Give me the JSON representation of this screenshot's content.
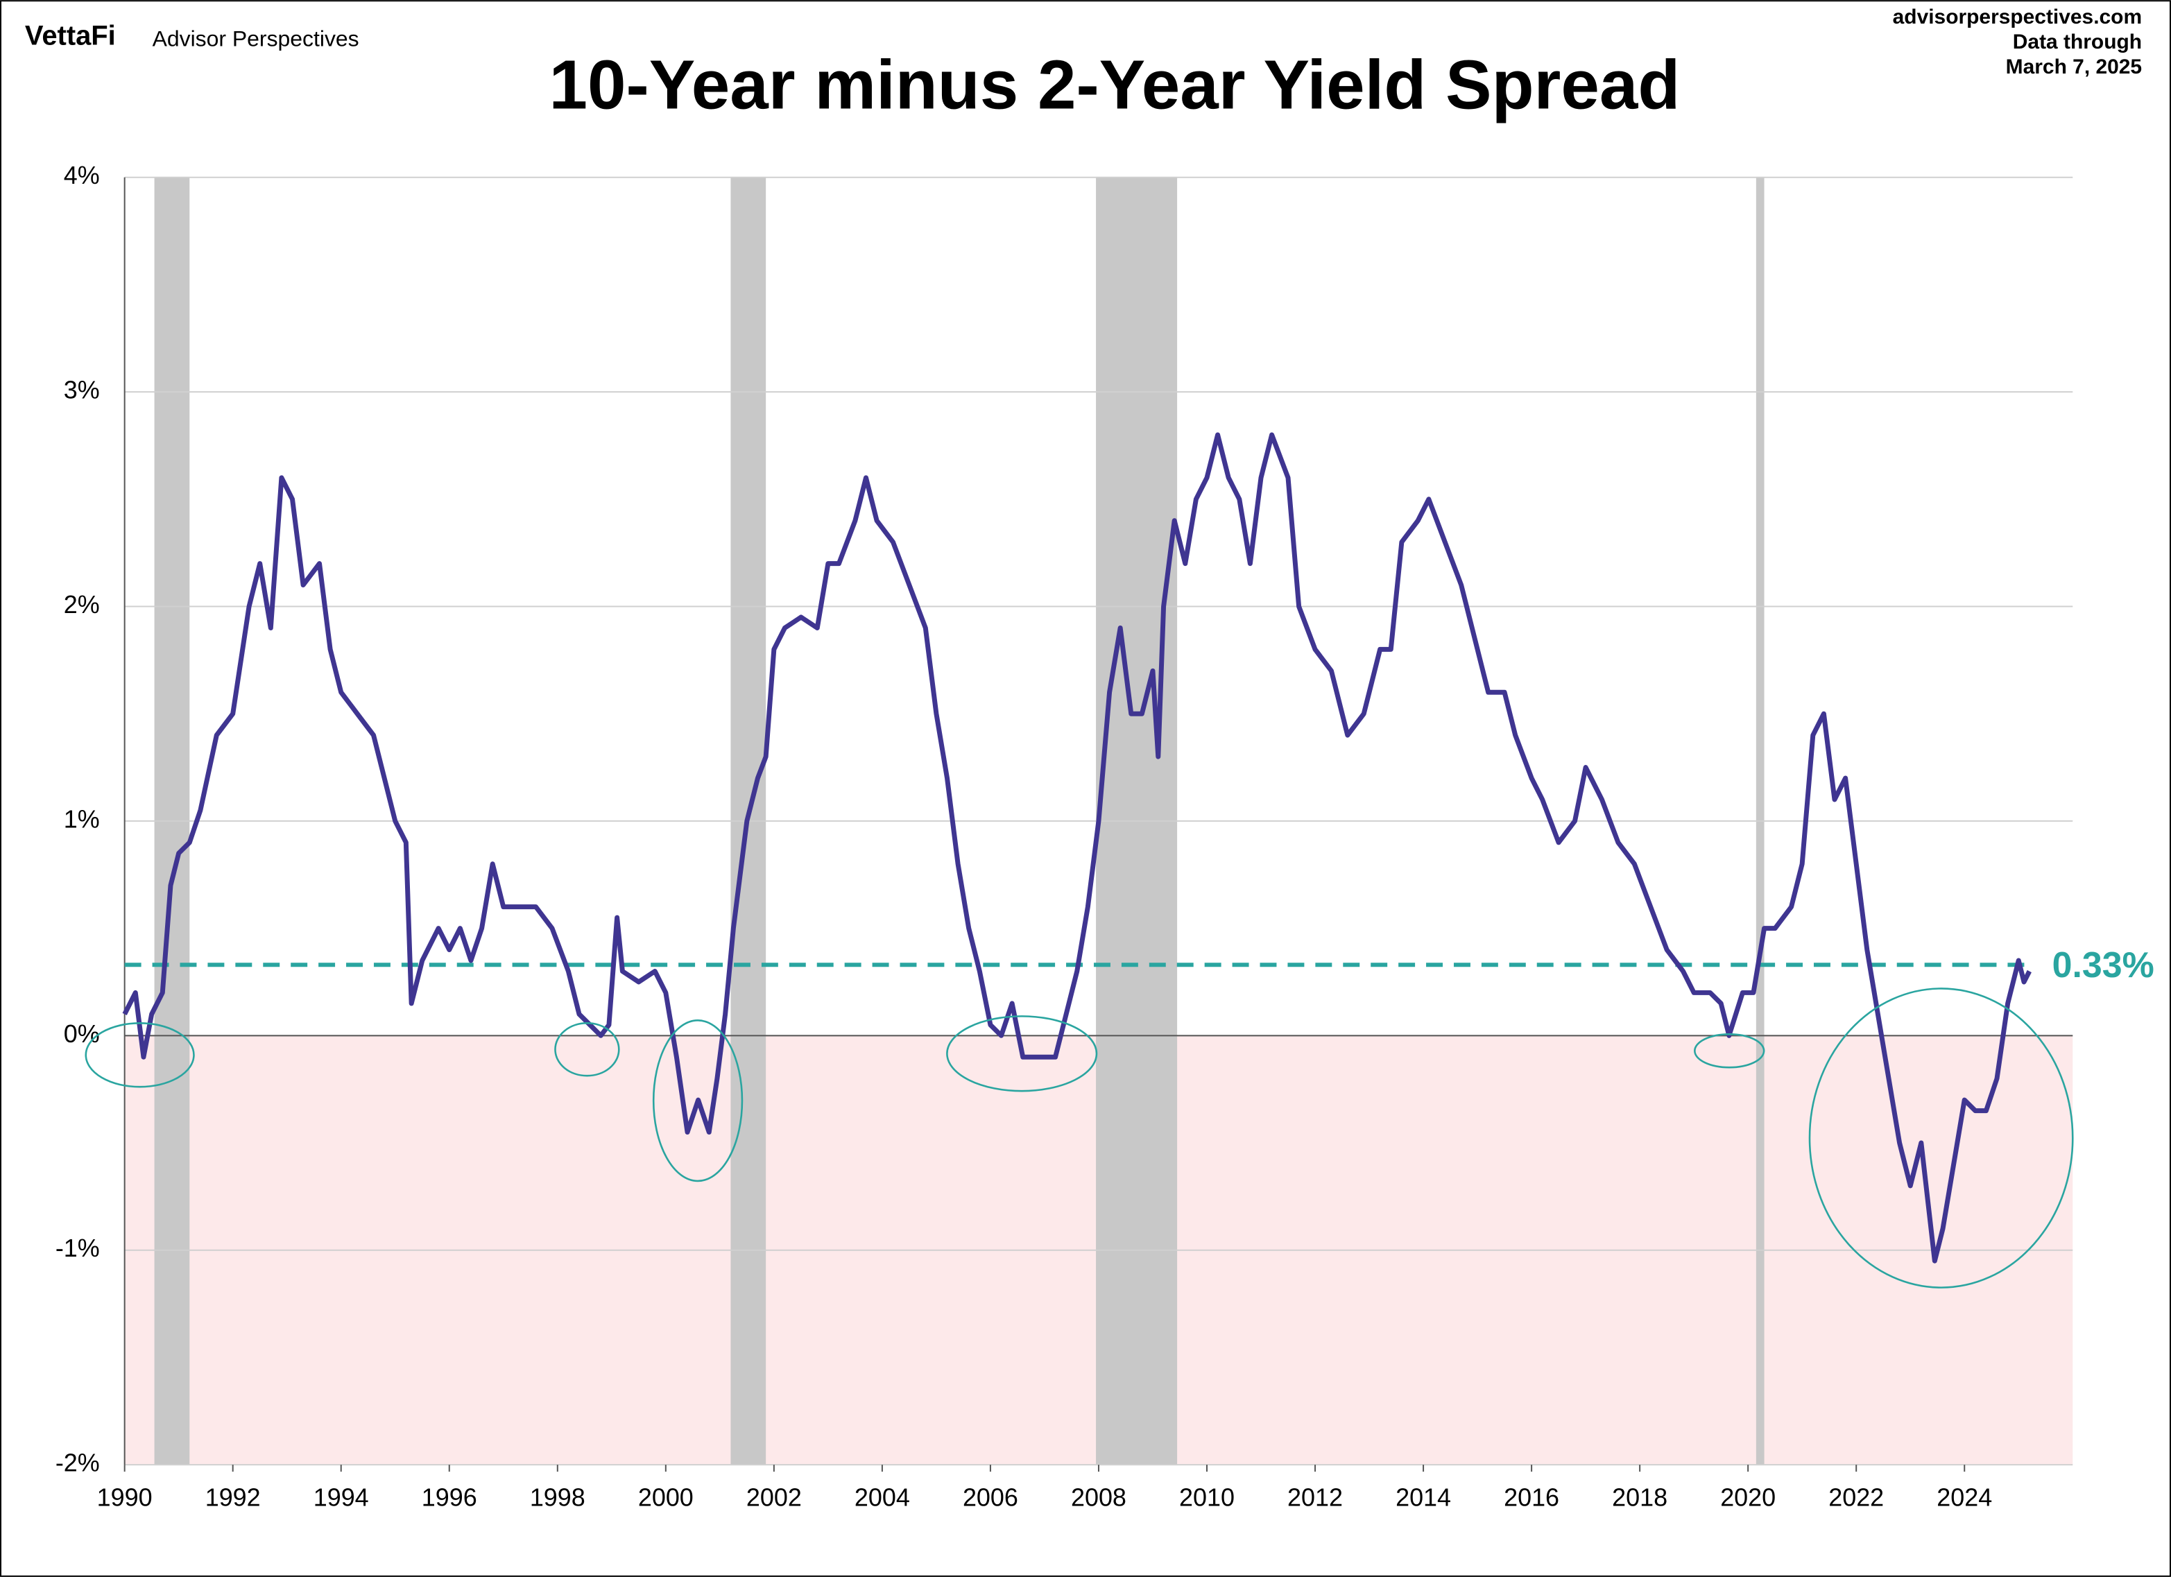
{
  "header": {
    "brand": "VettaFi",
    "publisher": "Advisor Perspectives",
    "site": "advisorperspectives.com",
    "note": "Data through",
    "date": "March 7, 2025"
  },
  "chart_data": {
    "type": "line",
    "title": "10-Year minus 2-Year Yield Spread",
    "color": "#3f3591",
    "x": [
      1990.0,
      1990.2,
      1990.35,
      1990.5,
      1990.7,
      1990.85,
      1991.0,
      1991.2,
      1991.4,
      1991.7,
      1992.0,
      1992.3,
      1992.5,
      1992.7,
      1992.9,
      1993.1,
      1993.3,
      1993.6,
      1993.8,
      1994.0,
      1994.3,
      1994.6,
      1994.8,
      1995.0,
      1995.2,
      1995.3,
      1995.5,
      1995.8,
      1996.0,
      1996.2,
      1996.4,
      1996.6,
      1996.8,
      1997.0,
      1997.3,
      1997.6,
      1997.9,
      1998.2,
      1998.4,
      1998.6,
      1998.8,
      1998.95,
      1999.1,
      1999.2,
      1999.5,
      1999.8,
      2000.0,
      2000.2,
      2000.4,
      2000.6,
      2000.8,
      2000.95,
      2001.1,
      2001.25,
      2001.5,
      2001.7,
      2001.85,
      2002.0,
      2002.2,
      2002.5,
      2002.8,
      2003.0,
      2003.2,
      2003.5,
      2003.7,
      2003.9,
      2004.2,
      2004.5,
      2004.8,
      2005.0,
      2005.2,
      2005.4,
      2005.6,
      2005.8,
      2006.0,
      2006.2,
      2006.4,
      2006.6,
      2006.8,
      2007.0,
      2007.2,
      2007.4,
      2007.6,
      2007.8,
      2008.0,
      2008.2,
      2008.4,
      2008.6,
      2008.8,
      2009.0,
      2009.1,
      2009.2,
      2009.4,
      2009.6,
      2009.8,
      2010.0,
      2010.2,
      2010.4,
      2010.6,
      2010.8,
      2011.0,
      2011.2,
      2011.5,
      2011.7,
      2012.0,
      2012.3,
      2012.6,
      2012.9,
      2013.2,
      2013.4,
      2013.6,
      2013.9,
      2014.1,
      2014.4,
      2014.7,
      2014.9,
      2015.2,
      2015.5,
      2015.7,
      2016.0,
      2016.2,
      2016.5,
      2016.8,
      2017.0,
      2017.3,
      2017.6,
      2017.9,
      2018.2,
      2018.5,
      2018.8,
      2019.0,
      2019.3,
      2019.5,
      2019.65,
      2019.9,
      2020.1,
      2020.3,
      2020.5,
      2020.8,
      2021.0,
      2021.2,
      2021.4,
      2021.6,
      2021.8,
      2022.0,
      2022.2,
      2022.4,
      2022.6,
      2022.8,
      2023.0,
      2023.2,
      2023.45,
      2023.6,
      2023.8,
      2024.0,
      2024.2,
      2024.4,
      2024.6,
      2024.8,
      2025.0,
      2025.1,
      2025.2
    ],
    "values": [
      0.1,
      0.2,
      -0.1,
      0.1,
      0.2,
      0.7,
      0.85,
      0.9,
      1.05,
      1.4,
      1.5,
      2.0,
      2.2,
      1.9,
      2.6,
      2.5,
      2.1,
      2.2,
      1.8,
      1.6,
      1.5,
      1.4,
      1.2,
      1.0,
      0.9,
      0.15,
      0.35,
      0.5,
      0.4,
      0.5,
      0.35,
      0.5,
      0.8,
      0.6,
      0.6,
      0.6,
      0.5,
      0.3,
      0.1,
      0.05,
      0.0,
      0.05,
      0.55,
      0.3,
      0.25,
      0.3,
      0.2,
      -0.1,
      -0.45,
      -0.3,
      -0.45,
      -0.2,
      0.1,
      0.5,
      1.0,
      1.2,
      1.3,
      1.8,
      1.9,
      1.95,
      1.9,
      2.2,
      2.2,
      2.4,
      2.6,
      2.4,
      2.3,
      2.1,
      1.9,
      1.5,
      1.2,
      0.8,
      0.5,
      0.3,
      0.05,
      0.0,
      0.15,
      -0.1,
      -0.1,
      -0.1,
      -0.1,
      0.1,
      0.3,
      0.6,
      1.0,
      1.6,
      1.9,
      1.5,
      1.5,
      1.7,
      1.3,
      2.0,
      2.4,
      2.2,
      2.5,
      2.6,
      2.8,
      2.6,
      2.5,
      2.2,
      2.6,
      2.8,
      2.6,
      2.0,
      1.8,
      1.7,
      1.4,
      1.5,
      1.8,
      1.8,
      2.3,
      2.4,
      2.5,
      2.3,
      2.1,
      1.9,
      1.6,
      1.6,
      1.4,
      1.2,
      1.1,
      0.9,
      1.0,
      1.25,
      1.1,
      0.9,
      0.8,
      0.6,
      0.4,
      0.3,
      0.2,
      0.2,
      0.15,
      0.0,
      0.2,
      0.2,
      0.5,
      0.5,
      0.6,
      0.8,
      1.4,
      1.5,
      1.1,
      1.2,
      0.8,
      0.4,
      0.1,
      -0.2,
      -0.5,
      -0.7,
      -0.5,
      -1.05,
      -0.9,
      -0.6,
      -0.3,
      -0.35,
      -0.35,
      -0.2,
      0.15,
      0.35,
      0.25,
      0.3
    ],
    "xlim": [
      1990,
      2026
    ],
    "ylim": [
      -2,
      4
    ],
    "xticks": [
      1990,
      1992,
      1994,
      1996,
      1998,
      2000,
      2002,
      2004,
      2006,
      2008,
      2010,
      2012,
      2014,
      2016,
      2018,
      2020,
      2022,
      2024
    ],
    "yticks": [
      {
        "value": -2,
        "label": "-2%"
      },
      {
        "value": -1,
        "label": "-1%"
      },
      {
        "value": 0,
        "label": "0%"
      },
      {
        "value": 1,
        "label": "1%"
      },
      {
        "value": 2,
        "label": "2%"
      },
      {
        "value": 3,
        "label": "3%"
      },
      {
        "value": 4,
        "label": "4%"
      }
    ],
    "grid": true,
    "recessions": [
      [
        1990.55,
        1991.2
      ],
      [
        2001.2,
        2001.85
      ],
      [
        2007.95,
        2009.45
      ],
      [
        2020.15,
        2020.3
      ]
    ],
    "reference": {
      "value": 0.33,
      "label": "0.33%"
    }
  }
}
